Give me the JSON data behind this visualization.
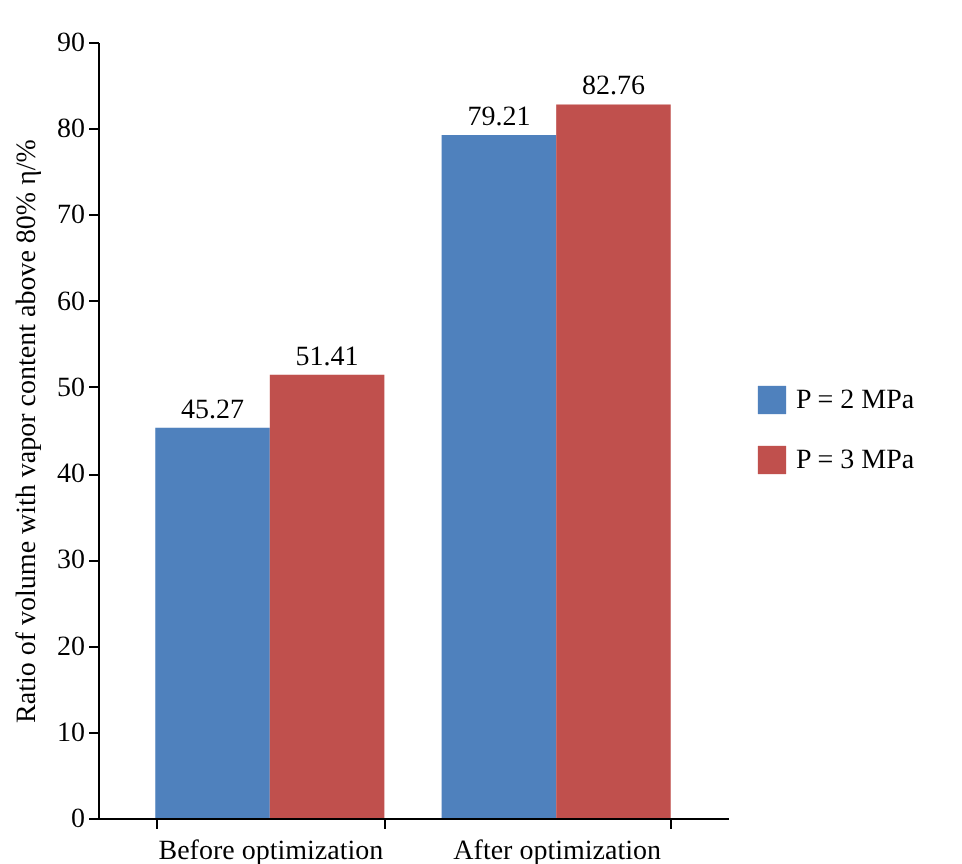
{
  "chart_data": {
    "type": "bar",
    "ylabel": "Ratio of volume with vapor content above 80% η/%",
    "categories": [
      "Before optimization",
      "After optimization"
    ],
    "series": [
      {
        "name": "P = 2 MPa",
        "color": "#4f81bd",
        "values": [
          45.27,
          79.21
        ]
      },
      {
        "name": "P = 3 MPa",
        "color": "#c0504d",
        "values": [
          51.41,
          82.76
        ]
      }
    ],
    "ylim": [
      0,
      90
    ],
    "yticks": [
      0,
      10,
      20,
      30,
      40,
      50,
      60,
      70,
      80,
      90
    ],
    "grid": false,
    "legend": "right",
    "data_labels": true
  }
}
